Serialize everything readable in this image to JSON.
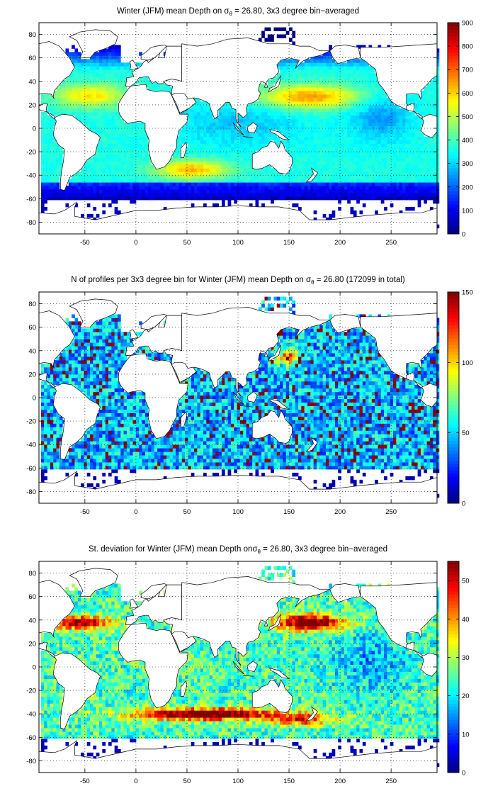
{
  "chart_data": [
    {
      "type": "heatmap",
      "title": "Winter (JFM) mean Depth on σθ = 26.80, 3x3 degree bin−averaged",
      "title_parts": {
        "pre": "Winter (JFM) mean Depth on σ",
        "sub": "θ",
        "post": " = 26.80, 3x3 degree bin−averaged"
      },
      "x_ticks": [
        -50,
        0,
        50,
        100,
        150,
        200,
        250
      ],
      "y_ticks": [
        -80,
        -60,
        -40,
        -20,
        0,
        20,
        40,
        60,
        80
      ],
      "xlim": [
        -95,
        295
      ],
      "ylim": [
        -90,
        90
      ],
      "colorbar": {
        "min": 0,
        "max": 900,
        "ticks": [
          0,
          100,
          200,
          300,
          400,
          500,
          600,
          700,
          800,
          900
        ]
      },
      "colormap": "jet",
      "grid": true,
      "field": "depth"
    },
    {
      "type": "heatmap",
      "title": "N of profiles per 3x3 degree bin for Winter (JFM) mean Depth on σθ = 26.80 (172099 in total)",
      "title_parts": {
        "pre": "N of profiles per 3x3 degree bin for Winter (JFM) mean Depth on σ",
        "sub": "θ",
        "post": " = 26.80 (172099 in total)"
      },
      "x_ticks": [
        -50,
        0,
        50,
        100,
        150,
        200,
        250
      ],
      "y_ticks": [
        -80,
        -60,
        -40,
        -20,
        0,
        20,
        40,
        60,
        80
      ],
      "xlim": [
        -95,
        295
      ],
      "ylim": [
        -90,
        90
      ],
      "colorbar": {
        "min": 0,
        "max": 150,
        "ticks": [
          0,
          50,
          100,
          150
        ]
      },
      "colormap": "jet",
      "grid": true,
      "field": "count"
    },
    {
      "type": "heatmap",
      "title": "St. deviation for Winter (JFM) mean Depth onσθ = 26.80, 3x3 degree bin−averaged",
      "title_parts": {
        "pre": "St. deviation for Winter (JFM) mean Depth onσ",
        "sub": "θ",
        "post": " = 26.80, 3x3 degree bin−averaged"
      },
      "x_ticks": [
        -50,
        0,
        50,
        100,
        150,
        200,
        250
      ],
      "y_ticks": [
        -80,
        -60,
        -40,
        -20,
        0,
        20,
        40,
        60,
        80
      ],
      "xlim": [
        -95,
        295
      ],
      "ylim": [
        -90,
        90
      ],
      "colorbar": {
        "min": 0,
        "max": 55,
        "ticks": [
          0,
          10,
          20,
          30,
          40,
          50
        ]
      },
      "colormap": "jet",
      "grid": true,
      "field": "stdev"
    }
  ]
}
